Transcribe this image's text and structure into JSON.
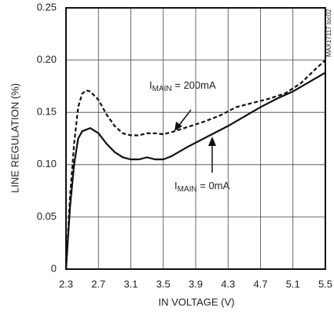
{
  "chart_data": {
    "type": "line",
    "xlabel": "IN VOLTAGE (V)",
    "ylabel": "LINE REGULATION (%)",
    "side_note": "MAX17117 toc02",
    "annotations": [
      {
        "prefix": "I",
        "subscript": "MAIN",
        "text": " = 200mA"
      },
      {
        "prefix": "I",
        "subscript": "MAIN",
        "text": " = 0mA"
      }
    ],
    "xlim": [
      2.3,
      5.5
    ],
    "xticks": [
      2.3,
      2.7,
      3.1,
      3.5,
      3.9,
      4.3,
      4.7,
      5.1,
      5.5
    ],
    "ylim": [
      0,
      0.25
    ],
    "yticks": [
      0,
      0.05,
      {
        "value": 0.1,
        "label": "0.10"
      },
      0.15,
      {
        "value": 0.2,
        "label": "0.20"
      },
      0.25
    ],
    "grid": true,
    "series": [
      {
        "color": "#111",
        "dash": true,
        "x": [
          2.3,
          2.35,
          2.4,
          2.45,
          2.5,
          2.55,
          2.6,
          2.7,
          2.8,
          2.9,
          3.0,
          3.1,
          3.2,
          3.3,
          3.4,
          3.5,
          3.6,
          3.8,
          4.0,
          4.2,
          4.4,
          4.6,
          4.8,
          5.0,
          5.2,
          5.4,
          5.5
        ],
        "values": [
          0,
          0.07,
          0.12,
          0.155,
          0.168,
          0.171,
          0.17,
          0.162,
          0.148,
          0.137,
          0.13,
          0.128,
          0.128,
          0.13,
          0.13,
          0.129,
          0.131,
          0.136,
          0.141,
          0.147,
          0.155,
          0.159,
          0.163,
          0.168,
          0.178,
          0.193,
          0.2
        ]
      },
      {
        "color": "#111",
        "dash": false,
        "x": [
          2.3,
          2.35,
          2.4,
          2.45,
          2.5,
          2.6,
          2.7,
          2.8,
          2.9,
          3.0,
          3.1,
          3.2,
          3.3,
          3.4,
          3.5,
          3.6,
          3.8,
          4.0,
          4.3,
          4.5,
          4.7,
          4.9,
          5.1,
          5.3,
          5.5
        ],
        "values": [
          0,
          0.06,
          0.1,
          0.125,
          0.132,
          0.135,
          0.13,
          0.12,
          0.112,
          0.107,
          0.105,
          0.105,
          0.107,
          0.105,
          0.105,
          0.108,
          0.117,
          0.125,
          0.137,
          0.146,
          0.155,
          0.163,
          0.17,
          0.179,
          0.188
        ]
      }
    ]
  }
}
